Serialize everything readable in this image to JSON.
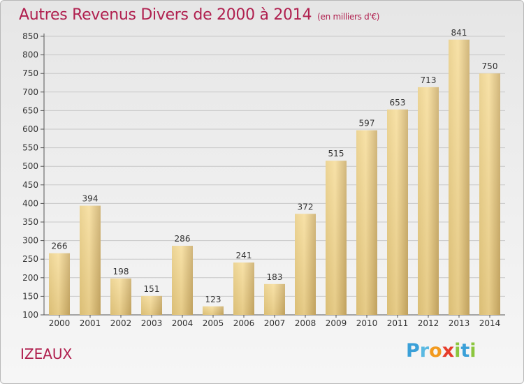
{
  "title": "Autres Revenus Divers de 2000 à 2014",
  "subtitle": "(en milliers d'€)",
  "commune": "IZEAUX",
  "logo": {
    "letters": [
      "P",
      "r",
      "o",
      "x",
      "i",
      "t",
      "i"
    ]
  },
  "colors": {
    "title": "#b0204f",
    "bar_light": "#f6dd9a",
    "bar_dark": "#c4a563",
    "grid": "#c8c8c8"
  },
  "chart_data": {
    "type": "bar",
    "categories": [
      "2000",
      "2001",
      "2002",
      "2003",
      "2004",
      "2005",
      "2006",
      "2007",
      "2008",
      "2009",
      "2010",
      "2011",
      "2012",
      "2013",
      "2014"
    ],
    "values": [
      266,
      394,
      198,
      151,
      286,
      123,
      241,
      183,
      372,
      515,
      597,
      653,
      713,
      841,
      750
    ],
    "yticks": [
      100,
      150,
      200,
      250,
      300,
      350,
      400,
      450,
      500,
      550,
      600,
      650,
      700,
      750,
      800,
      850
    ],
    "ylim": [
      100,
      850
    ],
    "grid": true,
    "data_labels": true
  }
}
